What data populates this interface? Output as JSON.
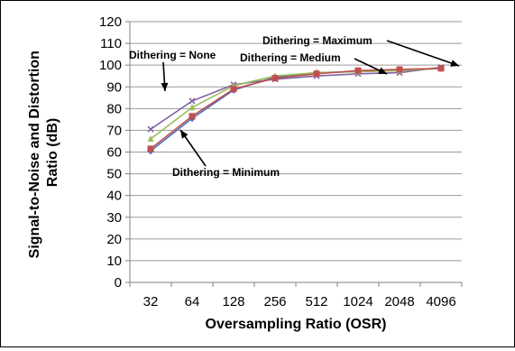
{
  "chart_data": {
    "type": "line",
    "xlabel": "Oversampling Ratio (OSR)",
    "ylabel_lines": [
      "Signal-to-Noise and Distortion",
      "Ratio (dB)"
    ],
    "categories": [
      "32",
      "64",
      "128",
      "256",
      "512",
      "1024",
      "2048",
      "4096"
    ],
    "ylim": [
      0,
      120
    ],
    "yticks": [
      0,
      10,
      20,
      30,
      40,
      50,
      60,
      70,
      80,
      90,
      100,
      110,
      120
    ],
    "grid": true,
    "legend": "none",
    "series": [
      {
        "key": "none",
        "color": "#8064a2",
        "marker": "x",
        "values": [
          70.5,
          83.5,
          91.0,
          93.5,
          95.0,
          96.0,
          96.5,
          99.0
        ]
      },
      {
        "key": "minimum",
        "color": "#4f6fbe",
        "marker": "diamond",
        "values": [
          60.5,
          75.5,
          88.5,
          94.5,
          96.5,
          97.0,
          97.5,
          98.5
        ]
      },
      {
        "key": "medium",
        "color": "#9bbb59",
        "marker": "triangle",
        "values": [
          66.0,
          80.5,
          90.5,
          95.0,
          96.5,
          97.0,
          97.5,
          98.5
        ]
      },
      {
        "key": "maximum",
        "color": "#c0504d",
        "marker": "square",
        "values": [
          61.5,
          76.5,
          89.0,
          94.0,
          96.0,
          97.5,
          98.0,
          98.5
        ]
      }
    ],
    "annotations": [
      {
        "text": "Dithering = None",
        "target_series": "none",
        "target_index": 1
      },
      {
        "text": "Dithering = Maximum",
        "target_series": "maximum",
        "target_index": 7
      },
      {
        "text": "Dithering = Medium",
        "target_series": "medium",
        "target_index": 5
      },
      {
        "text": "Dithering = Minimum",
        "target_series": "minimum",
        "target_index": 1
      }
    ]
  }
}
